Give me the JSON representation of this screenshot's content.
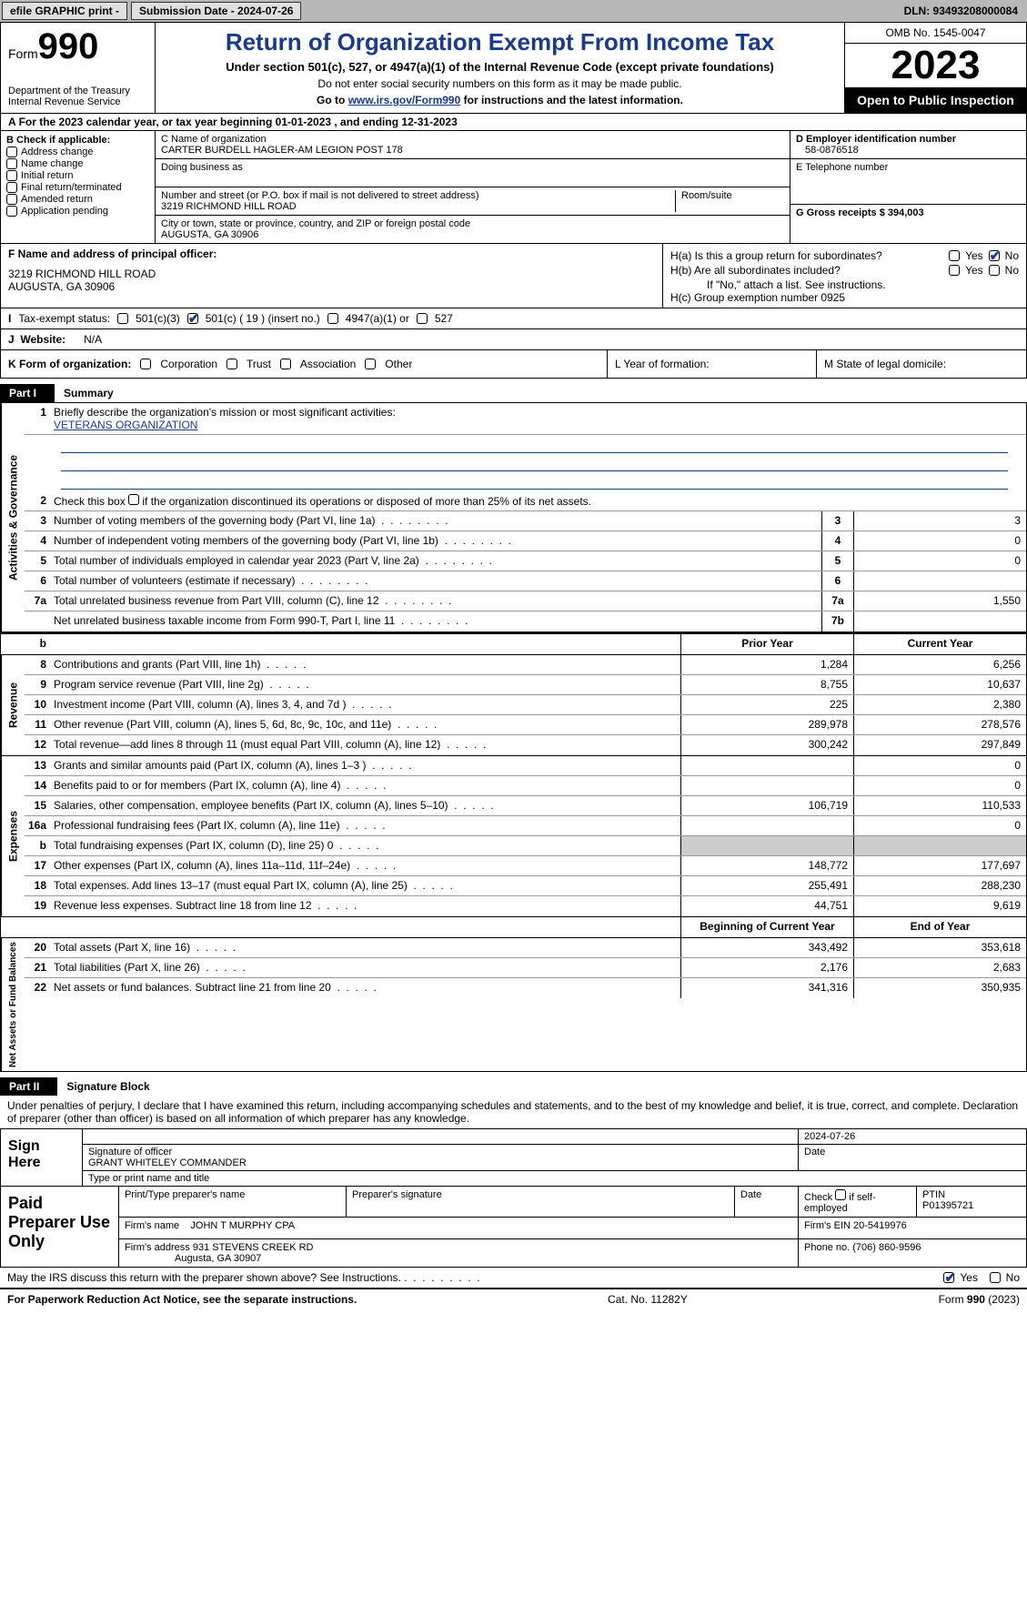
{
  "topbar": {
    "efile": "efile GRAPHIC print -",
    "submission_label": "Submission Date - 2024-07-26",
    "dln_label": "DLN: 93493208000084"
  },
  "header": {
    "form_label": "Form",
    "form_number": "990",
    "dept": "Department of the Treasury Internal Revenue Service",
    "title": "Return of Organization Exempt From Income Tax",
    "sub1": "Under section 501(c), 527, or 4947(a)(1) of the Internal Revenue Code (except private foundations)",
    "sub2": "Do not enter social security numbers on this form as it may be made public.",
    "sub3_pre": "Go to ",
    "sub3_link": "www.irs.gov/Form990",
    "sub3_post": " for instructions and the latest information.",
    "omb": "OMB No. 1545-0047",
    "year": "2023",
    "inspection": "Open to Public Inspection"
  },
  "section_a": "For the 2023 calendar year, or tax year beginning 01-01-2023    , and ending 12-31-2023",
  "box_b": {
    "label": "B Check if applicable:",
    "items": [
      "Address change",
      "Name change",
      "Initial return",
      "Final return/terminated",
      "Amended return",
      "Application pending"
    ]
  },
  "box_c": {
    "name_label": "C Name of organization",
    "name": "CARTER BURDELL HAGLER-AM LEGION POST 178",
    "dba_label": "Doing business as",
    "addr_label": "Number and street (or P.O. box if mail is not delivered to street address)",
    "room_label": "Room/suite",
    "addr": "3219 RICHMOND HILL ROAD",
    "city_label": "City or town, state or province, country, and ZIP or foreign postal code",
    "city": "AUGUSTA, GA  30906"
  },
  "box_d": {
    "label": "D Employer identification number",
    "val": "58-0876518"
  },
  "box_e": {
    "label": "E Telephone number"
  },
  "box_g": {
    "label": "G Gross receipts $ 394,003"
  },
  "box_f": {
    "label": "F  Name and address of principal officer:",
    "line1": "3219 RICHMOND HILL ROAD",
    "line2": "AUGUSTA, GA  30906"
  },
  "box_h": {
    "a": "H(a)  Is this a group return for subordinates?",
    "b": "H(b)  Are all subordinates included?",
    "b_note": "If \"No,\" attach a list. See instructions.",
    "c": "H(c)  Group exemption number   0925"
  },
  "box_i": {
    "label": "Tax-exempt status:",
    "o1": "501(c)(3)",
    "o2": "501(c) ( 19 ) (insert no.)",
    "o3": "4947(a)(1) or",
    "o4": "527"
  },
  "box_j": {
    "label": "Website:",
    "val": "N/A"
  },
  "box_k": {
    "label": "K Form of organization:",
    "o1": "Corporation",
    "o2": "Trust",
    "o3": "Association",
    "o4": "Other"
  },
  "box_l": "L Year of formation:",
  "box_m": "M State of legal domicile:",
  "part1": {
    "header": "Part I",
    "title": "Summary",
    "l1": "Briefly describe the organization's mission or most significant activities:",
    "l1_val": "VETERANS ORGANIZATION",
    "l2": "Check this box       if the organization discontinued its operations or disposed of more than 25% of its net assets.",
    "lines_gov": [
      {
        "n": "3",
        "t": "Number of voting members of the governing body (Part VI, line 1a)",
        "lbl": "3",
        "v": "3"
      },
      {
        "n": "4",
        "t": "Number of independent voting members of the governing body (Part VI, line 1b)",
        "lbl": "4",
        "v": "0"
      },
      {
        "n": "5",
        "t": "Total number of individuals employed in calendar year 2023 (Part V, line 2a)",
        "lbl": "5",
        "v": "0"
      },
      {
        "n": "6",
        "t": "Total number of volunteers (estimate if necessary)",
        "lbl": "6",
        "v": ""
      },
      {
        "n": "7a",
        "t": "Total unrelated business revenue from Part VIII, column (C), line 12",
        "lbl": "7a",
        "v": "1,550"
      },
      {
        "n": "",
        "t": "Net unrelated business taxable income from Form 990-T, Part I, line 11",
        "lbl": "7b",
        "v": ""
      }
    ],
    "col_head": {
      "b": "b",
      "prior": "Prior Year",
      "current": "Current Year"
    },
    "lines_rev": [
      {
        "n": "8",
        "t": "Contributions and grants (Part VIII, line 1h)",
        "p": "1,284",
        "c": "6,256"
      },
      {
        "n": "9",
        "t": "Program service revenue (Part VIII, line 2g)",
        "p": "8,755",
        "c": "10,637"
      },
      {
        "n": "10",
        "t": "Investment income (Part VIII, column (A), lines 3, 4, and 7d )",
        "p": "225",
        "c": "2,380"
      },
      {
        "n": "11",
        "t": "Other revenue (Part VIII, column (A), lines 5, 6d, 8c, 9c, 10c, and 11e)",
        "p": "289,978",
        "c": "278,576"
      },
      {
        "n": "12",
        "t": "Total revenue—add lines 8 through 11 (must equal Part VIII, column (A), line 12)",
        "p": "300,242",
        "c": "297,849"
      }
    ],
    "lines_exp": [
      {
        "n": "13",
        "t": "Grants and similar amounts paid (Part IX, column (A), lines 1–3 )",
        "p": "",
        "c": "0"
      },
      {
        "n": "14",
        "t": "Benefits paid to or for members (Part IX, column (A), line 4)",
        "p": "",
        "c": "0"
      },
      {
        "n": "15",
        "t": "Salaries, other compensation, employee benefits (Part IX, column (A), lines 5–10)",
        "p": "106,719",
        "c": "110,533"
      },
      {
        "n": "16a",
        "t": "Professional fundraising fees (Part IX, column (A), line 11e)",
        "p": "",
        "c": "0"
      },
      {
        "n": "b",
        "t": "Total fundraising expenses (Part IX, column (D), line 25) 0",
        "p": "grey",
        "c": "grey"
      },
      {
        "n": "17",
        "t": "Other expenses (Part IX, column (A), lines 11a–11d, 11f–24e)",
        "p": "148,772",
        "c": "177,697"
      },
      {
        "n": "18",
        "t": "Total expenses. Add lines 13–17 (must equal Part IX, column (A), line 25)",
        "p": "255,491",
        "c": "288,230"
      },
      {
        "n": "19",
        "t": "Revenue less expenses. Subtract line 18 from line 12",
        "p": "44,751",
        "c": "9,619"
      }
    ],
    "net_head": {
      "b": "Beginning of Current Year",
      "e": "End of Year"
    },
    "lines_net": [
      {
        "n": "20",
        "t": "Total assets (Part X, line 16)",
        "p": "343,492",
        "c": "353,618"
      },
      {
        "n": "21",
        "t": "Total liabilities (Part X, line 26)",
        "p": "2,176",
        "c": "2,683"
      },
      {
        "n": "22",
        "t": "Net assets or fund balances. Subtract line 21 from line 20",
        "p": "341,316",
        "c": "350,935"
      }
    ],
    "vlabels": {
      "gov": "Activities & Governance",
      "rev": "Revenue",
      "exp": "Expenses",
      "net": "Net Assets or Fund Balances"
    }
  },
  "part2": {
    "header": "Part II",
    "title": "Signature Block",
    "decl": "Under penalties of perjury, I declare that I have examined this return, including accompanying schedules and statements, and to the best of my knowledge and belief, it is true, correct, and complete. Declaration of preparer (other than officer) is based on all information of which preparer has any knowledge.",
    "sign_here": "Sign Here",
    "sig_officer": "Signature of officer",
    "sig_name": "GRANT WHITELEY COMMANDER",
    "sig_type": "Type or print name and title",
    "sig_date_label": "Date",
    "sig_date": "2024-07-26",
    "paid": "Paid Preparer Use Only",
    "prep_name_label": "Print/Type preparer's name",
    "prep_sig_label": "Preparer's signature",
    "prep_date_label": "Date",
    "prep_check": "Check        if self-employed",
    "ptin_label": "PTIN",
    "ptin": "P01395721",
    "firm_name_label": "Firm's name",
    "firm_name": "JOHN T MURPHY CPA",
    "firm_ein": "Firm's EIN  20-5419976",
    "firm_addr_label": "Firm's address",
    "firm_addr1": "931 STEVENS CREEK RD",
    "firm_addr2": "Augusta, GA  30907",
    "phone": "Phone no. (706) 860-9596",
    "discuss": "May the IRS discuss this return with the preparer shown above? See Instructions.",
    "footer_left": "For Paperwork Reduction Act Notice, see the separate instructions.",
    "footer_mid": "Cat. No. 11282Y",
    "footer_right": "Form 990 (2023)"
  }
}
